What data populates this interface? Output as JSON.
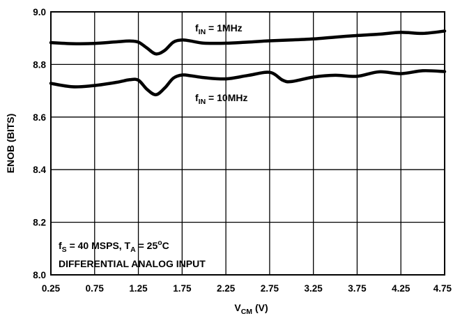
{
  "chart_data": {
    "type": "line",
    "title": "",
    "xlabel": {
      "main": "V",
      "sub": "CM",
      "rest": " (V)"
    },
    "ylabel": "ENOB (BITS)",
    "xlim": [
      0.25,
      4.75
    ],
    "ylim": [
      8.0,
      9.0
    ],
    "x_ticks": [
      "0.25",
      "0.75",
      "1.25",
      "1.75",
      "2.25",
      "2.75",
      "3.25",
      "3.75",
      "4.25",
      "4.75"
    ],
    "y_ticks": [
      "8.0",
      "8.2",
      "8.4",
      "8.6",
      "8.8",
      "9.0"
    ],
    "grid": true,
    "series": [
      {
        "name": "fIN = 1MHz",
        "label": {
          "main": "f",
          "sub": "IN",
          "rest": " = 1MHz"
        },
        "x": [
          0.25,
          0.5,
          0.75,
          1.0,
          1.15,
          1.25,
          1.35,
          1.45,
          1.55,
          1.65,
          1.75,
          1.85,
          2.0,
          2.25,
          2.5,
          2.75,
          3.0,
          3.25,
          3.5,
          3.75,
          4.0,
          4.25,
          4.5,
          4.75
        ],
        "y": [
          8.883,
          8.879,
          8.88,
          8.886,
          8.889,
          8.885,
          8.862,
          8.84,
          8.853,
          8.885,
          8.893,
          8.889,
          8.881,
          8.881,
          8.885,
          8.89,
          8.893,
          8.897,
          8.904,
          8.91,
          8.915,
          8.922,
          8.918,
          8.927
        ]
      },
      {
        "name": "fIN = 10MHz",
        "label": {
          "main": "f",
          "sub": "IN",
          "rest": " = 10MHz"
        },
        "x": [
          0.25,
          0.5,
          0.75,
          1.0,
          1.15,
          1.25,
          1.35,
          1.45,
          1.55,
          1.65,
          1.75,
          1.85,
          2.0,
          2.25,
          2.5,
          2.75,
          2.9,
          3.0,
          3.25,
          3.5,
          3.75,
          4.0,
          4.25,
          4.5,
          4.75
        ],
        "y": [
          8.728,
          8.715,
          8.72,
          8.732,
          8.742,
          8.74,
          8.705,
          8.685,
          8.71,
          8.748,
          8.76,
          8.757,
          8.75,
          8.745,
          8.758,
          8.77,
          8.74,
          8.735,
          8.752,
          8.759,
          8.755,
          8.772,
          8.765,
          8.776,
          8.773
        ]
      }
    ],
    "annotations": [
      {
        "name": "conditions-line-1",
        "parts": [
          {
            "t": "f"
          },
          {
            "t": "S",
            "sub": true
          },
          {
            "t": " = 40 MSPS, T"
          },
          {
            "t": "A",
            "sub": true
          },
          {
            "t": " = 25"
          },
          {
            "t": "o",
            "sup": true
          },
          {
            "t": "C"
          }
        ]
      },
      {
        "name": "conditions-line-2",
        "parts": [
          {
            "t": "DIFFERENTIAL ANALOG INPUT"
          }
        ]
      }
    ]
  }
}
